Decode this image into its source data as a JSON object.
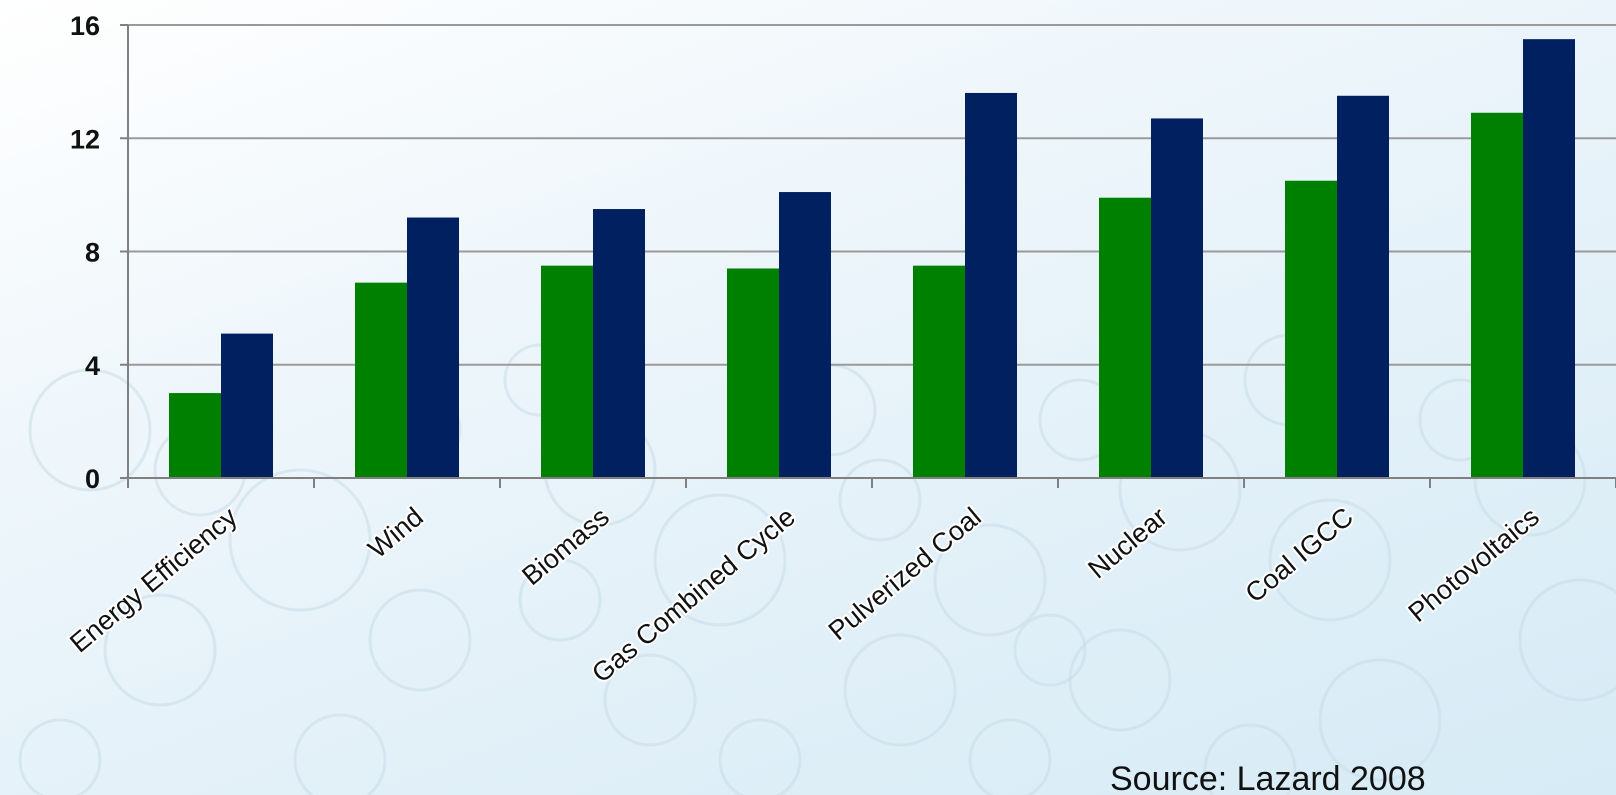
{
  "chart_data": {
    "type": "bar",
    "categories": [
      "Energy Efficiency",
      "Wind",
      "Biomass",
      "Gas Combined Cycle",
      "Pulverized Coal",
      "Nuclear",
      "Coal IGCC",
      "Photovoltaics"
    ],
    "series": [
      {
        "color": "#008000",
        "values": [
          3.0,
          6.9,
          7.5,
          7.4,
          7.5,
          9.9,
          10.5,
          12.9
        ]
      },
      {
        "color": "#00205f",
        "values": [
          5.1,
          9.2,
          9.5,
          10.1,
          13.6,
          12.7,
          13.5,
          15.5
        ]
      }
    ],
    "yticks": [
      "0",
      "4",
      "8",
      "12",
      "16"
    ],
    "ylim": [
      0,
      16
    ],
    "grid": true,
    "title": "",
    "xlabel": "",
    "ylabel": ""
  },
  "source_note": "Source: Lazard 2008",
  "colors": {
    "gridline": "#9a9a9a",
    "axis": "#808080",
    "background_circles": "#c9dde8"
  }
}
